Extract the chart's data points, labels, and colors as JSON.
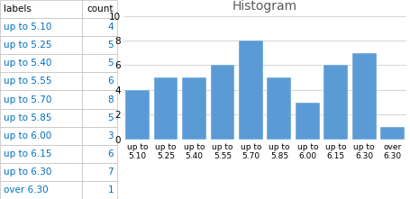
{
  "categories": [
    "up to\n5.10",
    "up to\n5.25",
    "up to\n5.40",
    "up to\n5.55",
    "up to\n5.70",
    "up to\n5.85",
    "up to\n6.00",
    "up to\n6.15",
    "up to\n6.30",
    "over\n6.30"
  ],
  "counts": [
    4,
    5,
    5,
    6,
    8,
    5,
    3,
    6,
    7,
    1
  ],
  "bar_color": "#5B9BD5",
  "title": "Histogram",
  "title_fontsize": 10,
  "ylim": [
    0,
    10
  ],
  "yticks": [
    0,
    2,
    4,
    6,
    8,
    10
  ],
  "tick_fontsize": 7.5,
  "label_fontsize": 6.5,
  "table_labels": [
    "labels",
    "up to 5.10",
    "up to 5.25",
    "up to 5.40",
    "up to 5.55",
    "up to 5.70",
    "up to 5.85",
    "up to 6.00",
    "up to 6.15",
    "up to 6.30",
    "over 6.30"
  ],
  "table_counts": [
    "count",
    4,
    5,
    5,
    6,
    8,
    5,
    3,
    6,
    7,
    1
  ],
  "grid_color": "#D9D9D9",
  "bar_edge_color": "#FFFFFF",
  "figure_bg": "#FFFFFF",
  "plot_bg": "#FFFFFF",
  "table_border_color": "#BFBFBF",
  "table_text_color": "#0070C0",
  "table_header_text_color": "#000000"
}
